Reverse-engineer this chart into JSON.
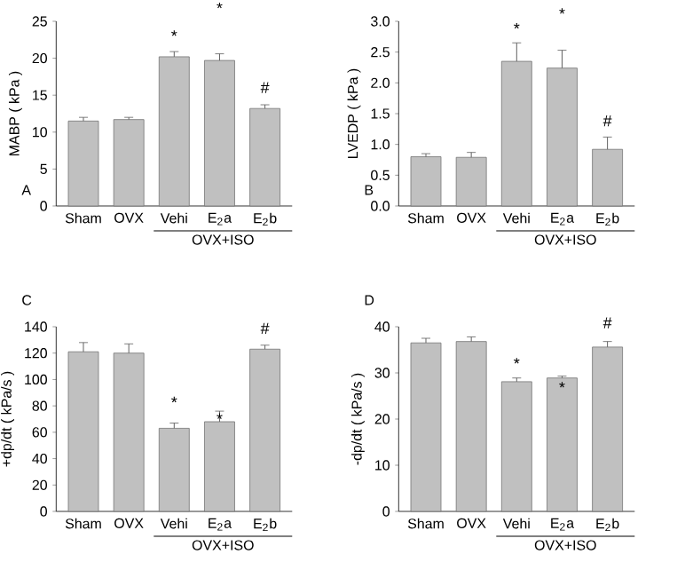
{
  "chart_data": [
    {
      "type": "bar",
      "ylabel": "MABP ( kPa )",
      "categories": [
        "Sham",
        "OVX",
        "Vehi",
        "E$_{2}$a",
        "E$_{2}$b"
      ],
      "values": [
        11.5,
        11.7,
        20.2,
        19.7,
        13.2
      ],
      "errors": [
        0.5,
        0.3,
        0.7,
        0.9,
        0.5
      ],
      "color": "#c0c0c0",
      "ylim": [
        0,
        25
      ],
      "yticks": [
        0,
        5,
        10,
        15,
        20,
        25
      ],
      "annotations": [
        "A",
        "OVX+ISO",
        "*",
        "*",
        "#"
      ]
    },
    {
      "type": "bar",
      "ylabel": "LVEDP ( kPa )",
      "categories": [
        "Sham",
        "OVX",
        "Vehi",
        "E$_{2}$a",
        "E$_{2}$b"
      ],
      "values": [
        0.8,
        0.79,
        2.35,
        2.24,
        0.92
      ],
      "errors": [
        0.05,
        0.08,
        0.3,
        0.29,
        0.2
      ],
      "color": "#c0c0c0",
      "ylim": [
        0,
        3.0
      ],
      "yticks": [
        {
          "value": 0,
          "label": "0.0"
        },
        {
          "value": 0.5,
          "label": "0.5"
        },
        {
          "value": 1,
          "label": "1.0"
        },
        {
          "value": 1.5,
          "label": "1.5"
        },
        {
          "value": 2,
          "label": "2.0"
        },
        {
          "value": 2.5,
          "label": "2.5"
        },
        {
          "value": 3,
          "label": "3.0"
        }
      ],
      "annotations": [
        "B",
        "OVX+ISO",
        "*",
        "*",
        "#"
      ]
    },
    {
      "type": "bar",
      "ylabel": "+dp/dt ( kPa/s )",
      "categories": [
        "Sham",
        "OVX",
        "Vehi",
        "E$_{2}$a",
        "E$_{2}$b"
      ],
      "values": [
        121,
        120,
        63,
        68,
        123
      ],
      "errors": [
        7,
        7,
        4,
        8,
        3
      ],
      "color": "#c0c0c0",
      "ylim": [
        0,
        140
      ],
      "yticks": [
        0,
        20,
        40,
        60,
        80,
        100,
        120,
        140
      ],
      "annotations": [
        "C",
        "OVX+ISO",
        "*",
        "*",
        "#"
      ]
    },
    {
      "type": "bar",
      "ylabel": "-dp/dt ( kPa/s )",
      "categories": [
        "Sham",
        "OVX",
        "Vehi",
        "E$_{2}$a",
        "E$_{2}$b"
      ],
      "values": [
        36.5,
        36.8,
        28.1,
        28.9,
        35.6
      ],
      "errors": [
        1,
        1,
        0.8,
        0.4,
        1.2
      ],
      "color": "#c0c0c0",
      "ylim": [
        0,
        40
      ],
      "yticks": [
        0,
        10,
        20,
        30,
        40
      ],
      "annotations": [
        "D",
        "OVX+ISO",
        "*",
        "*",
        "#"
      ]
    }
  ]
}
